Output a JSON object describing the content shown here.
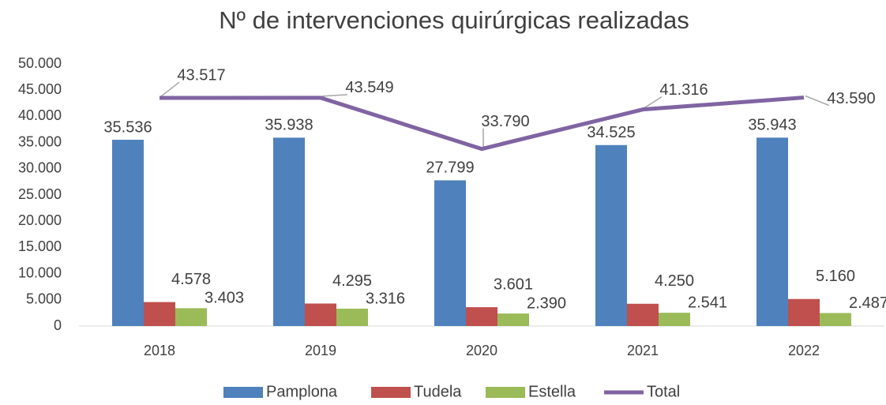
{
  "chart_data": {
    "type": "bar",
    "title": "Nº de intervenciones quirúrgicas realizadas",
    "categories": [
      "2018",
      "2019",
      "2020",
      "2021",
      "2022"
    ],
    "series": [
      {
        "name": "Pamplona",
        "type": "bar",
        "color": "#4f81bd",
        "values": [
          35536,
          35938,
          27799,
          34525,
          35943
        ],
        "value_labels": [
          "35.536",
          "35.938",
          "27.799",
          "34.525",
          "35.943"
        ]
      },
      {
        "name": "Tudela",
        "type": "bar",
        "color": "#c0504d",
        "values": [
          4578,
          4295,
          3601,
          4250,
          5160
        ],
        "value_labels": [
          "4.578",
          "4.295",
          "3.601",
          "4.250",
          "5.160"
        ]
      },
      {
        "name": "Estella",
        "type": "bar",
        "color": "#9bbb59",
        "values": [
          3403,
          3316,
          2390,
          2541,
          2487
        ],
        "value_labels": [
          "3.403",
          "3.316",
          "2.390",
          "2.541",
          "2.487"
        ]
      },
      {
        "name": "Total",
        "type": "line",
        "color": "#8064a2",
        "values": [
          43517,
          43549,
          33790,
          41316,
          43590
        ],
        "value_labels": [
          "43.517",
          "43.549",
          "33.790",
          "41.316",
          "43.590"
        ]
      }
    ],
    "ylim": [
      0,
      50000
    ],
    "yticks": [
      0,
      {
        "value": 5000,
        "label": "5.000"
      },
      {
        "value": 10000,
        "label": "10.000"
      },
      {
        "value": 15000,
        "label": "15.000"
      },
      {
        "value": 20000,
        "label": "20.000"
      },
      {
        "value": 25000,
        "label": "25.000"
      },
      {
        "value": 30000,
        "label": "30.000"
      },
      {
        "value": 35000,
        "label": "35.000"
      },
      {
        "value": 40000,
        "label": "40.000"
      },
      {
        "value": 45000,
        "label": "45.000"
      },
      {
        "value": 50000,
        "label": "50.000"
      }
    ],
    "legend": "bottom"
  }
}
